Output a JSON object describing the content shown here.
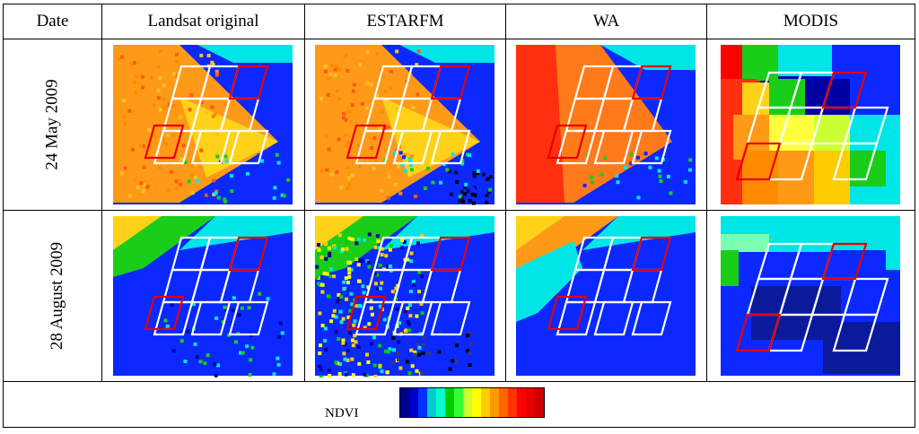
{
  "headers": {
    "date": "Date",
    "col1": "Landsat original",
    "col2": "ESTARFM",
    "col3": "WA",
    "col4": "MODIS"
  },
  "rows": [
    {
      "label": "24 May 2009"
    },
    {
      "label": "28 August 2009"
    }
  ],
  "legend": {
    "label": "NDVI",
    "colors": [
      "#00008f",
      "#0000cc",
      "#0033ff",
      "#00cccc",
      "#00ffcc",
      "#00cc00",
      "#33ff33",
      "#ccff33",
      "#ffff00",
      "#ffcc00",
      "#ff9900",
      "#ff6600",
      "#ff3300",
      "#ff0000",
      "#e60000",
      "#cc0000"
    ]
  },
  "palette": {
    "deep_blue": "#0000b4",
    "blue": "#0a28ff",
    "cyan": "#00e6e6",
    "green": "#19cd19",
    "yellow": "#f0f000",
    "orange": "#ff9a19",
    "red": "#ff1a00",
    "outline_white": "#ffffff",
    "outline_red": "#e60000"
  }
}
